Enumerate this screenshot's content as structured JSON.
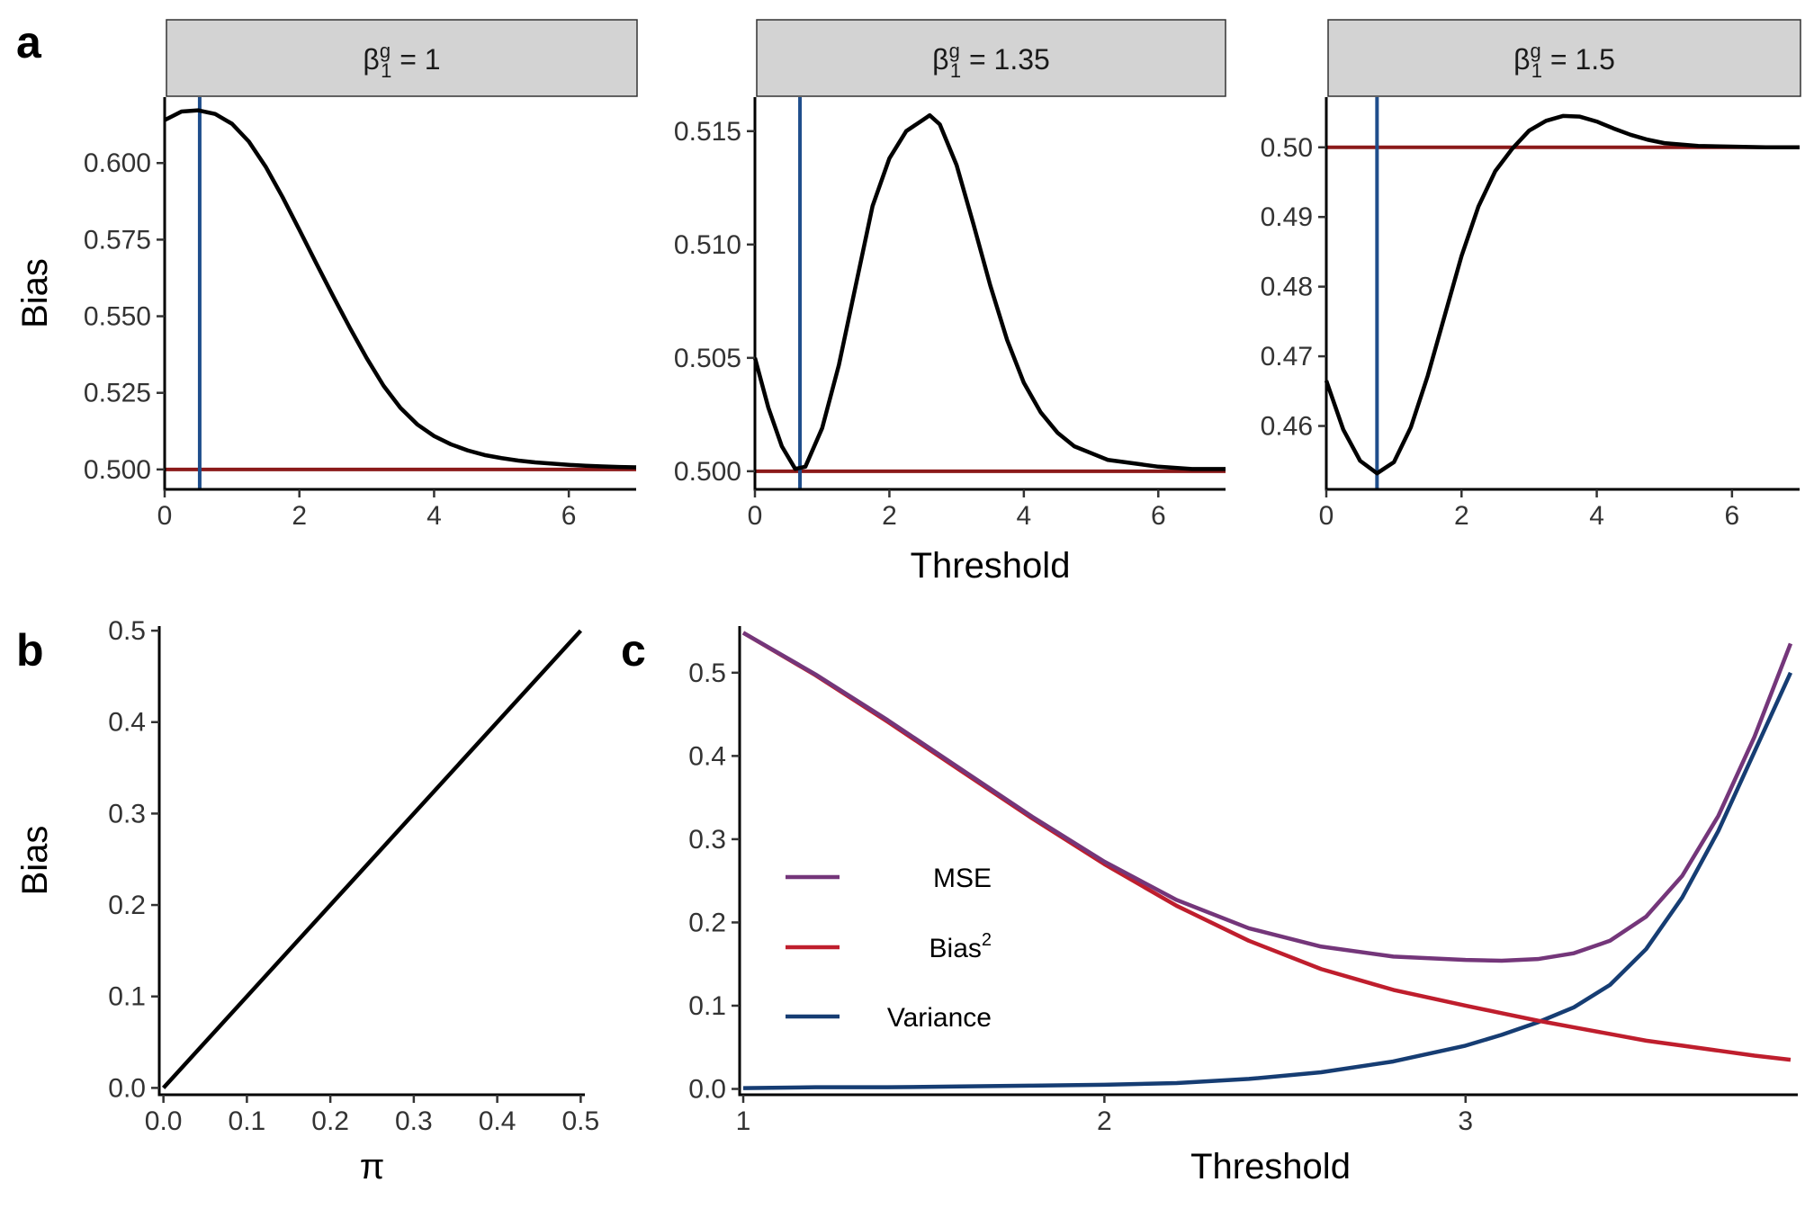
{
  "panel_labels": {
    "a": "a",
    "b": "b",
    "c": "c"
  },
  "colors": {
    "curve": "#000000",
    "vline": "#1f4e8c",
    "hline": "#8b1a1a",
    "strip_fill": "#d3d3d3",
    "mse": "#74367a",
    "bias2": "#bf1e2d",
    "variance": "#163d73"
  },
  "chart_data": [
    {
      "id": "a1",
      "type": "line",
      "strip": {
        "base": "β",
        "sup": "g",
        "sub": "1",
        "rest": " = 1"
      },
      "ylabel": "Bias",
      "xlabel": "",
      "xlim": [
        0,
        7
      ],
      "ylim": [
        0.4935,
        0.6215
      ],
      "xticks": [
        "0",
        "2",
        "4",
        "6"
      ],
      "xtick_values": [
        0,
        2,
        4,
        6
      ],
      "yticks": [
        "0.500",
        "0.525",
        "0.550",
        "0.575",
        "0.600"
      ],
      "ytick_values": [
        0.5,
        0.525,
        0.55,
        0.575,
        0.6
      ],
      "vline_x": 0.52,
      "hline_y": 0.5,
      "x": [
        0,
        0.25,
        0.5,
        0.75,
        1,
        1.25,
        1.5,
        1.75,
        2,
        2.25,
        2.5,
        2.75,
        3,
        3.25,
        3.5,
        3.75,
        4,
        4.25,
        4.5,
        4.75,
        5,
        5.25,
        5.5,
        5.75,
        6,
        6.25,
        6.5,
        6.75,
        7
      ],
      "y": [
        0.614,
        0.6168,
        0.6172,
        0.616,
        0.6128,
        0.607,
        0.5988,
        0.5889,
        0.5782,
        0.5673,
        0.5566,
        0.5462,
        0.5363,
        0.5273,
        0.5201,
        0.5147,
        0.5109,
        0.5082,
        0.5062,
        0.5047,
        0.5037,
        0.5029,
        0.5023,
        0.5019,
        0.5015,
        0.5012,
        0.501,
        0.5008,
        0.5007
      ]
    },
    {
      "id": "a2",
      "type": "line",
      "strip": {
        "base": "β",
        "sup": "g",
        "sub": "1",
        "rest": " = 1.35"
      },
      "ylabel": "",
      "xlabel": "Threshold",
      "xlim": [
        0,
        7
      ],
      "ylim": [
        0.4992,
        0.5165
      ],
      "xticks": [
        "0",
        "2",
        "4",
        "6"
      ],
      "xtick_values": [
        0,
        2,
        4,
        6
      ],
      "yticks": [
        "0.500",
        "0.505",
        "0.510",
        "0.515"
      ],
      "ytick_values": [
        0.5,
        0.505,
        0.51,
        0.515
      ],
      "vline_x": 0.67,
      "hline_y": 0.5,
      "x": [
        0,
        0.2,
        0.4,
        0.6,
        0.75,
        1,
        1.25,
        1.5,
        1.75,
        2,
        2.25,
        2.5,
        2.6,
        2.75,
        3,
        3.25,
        3.5,
        3.75,
        4,
        4.25,
        4.5,
        4.75,
        5,
        5.25,
        5.5,
        5.75,
        6,
        6.5,
        7
      ],
      "y": [
        0.505,
        0.5028,
        0.5011,
        0.5001,
        0.5002,
        0.5019,
        0.5047,
        0.5082,
        0.5117,
        0.5138,
        0.515,
        0.5155,
        0.5157,
        0.5153,
        0.5135,
        0.5109,
        0.5082,
        0.5058,
        0.5039,
        0.5026,
        0.5017,
        0.5011,
        0.5008,
        0.5005,
        0.5004,
        0.5003,
        0.5002,
        0.5001,
        0.5001
      ]
    },
    {
      "id": "a3",
      "type": "line",
      "strip": {
        "base": "β",
        "sup": "g",
        "sub": "1",
        "rest": " = 1.5"
      },
      "ylabel": "",
      "xlabel": "",
      "xlim": [
        0,
        7
      ],
      "ylim": [
        0.4509,
        0.5072
      ],
      "xticks": [
        "0",
        "2",
        "4",
        "6"
      ],
      "xtick_values": [
        0,
        2,
        4,
        6
      ],
      "yticks": [
        "0.46",
        "0.47",
        "0.48",
        "0.49",
        "0.50"
      ],
      "ytick_values": [
        0.46,
        0.47,
        0.48,
        0.49,
        0.5
      ],
      "vline_x": 0.75,
      "hline_y": 0.5,
      "x": [
        0,
        0.25,
        0.5,
        0.75,
        1,
        1.25,
        1.5,
        1.75,
        2,
        2.25,
        2.5,
        2.75,
        3,
        3.25,
        3.5,
        3.75,
        4,
        4.25,
        4.5,
        4.75,
        5,
        5.5,
        6,
        6.5,
        7
      ],
      "y": [
        0.4665,
        0.4595,
        0.455,
        0.4532,
        0.4548,
        0.4598,
        0.4672,
        0.4758,
        0.4844,
        0.4915,
        0.4966,
        0.4998,
        0.5024,
        0.5038,
        0.5045,
        0.5044,
        0.5037,
        0.5027,
        0.5018,
        0.5011,
        0.5006,
        0.5002,
        0.5001,
        0.5,
        0.5
      ]
    },
    {
      "id": "b",
      "type": "line",
      "ylabel": "Bias",
      "xlabel": "π",
      "xlim": [
        -0.005,
        0.505
      ],
      "ylim": [
        -0.0075,
        0.505
      ],
      "xticks": [
        "0.0",
        "0.1",
        "0.2",
        "0.3",
        "0.4",
        "0.5"
      ],
      "xtick_values": [
        0,
        0.1,
        0.2,
        0.3,
        0.4,
        0.5
      ],
      "yticks": [
        "0.0",
        "0.1",
        "0.2",
        "0.3",
        "0.4",
        "0.5"
      ],
      "ytick_values": [
        0,
        0.1,
        0.2,
        0.3,
        0.4,
        0.5
      ],
      "x": [
        0,
        0.5
      ],
      "y": [
        0,
        0.5
      ]
    },
    {
      "id": "c",
      "type": "line",
      "ylabel": "",
      "xlabel": "Threshold",
      "xlim": [
        0.99,
        3.92
      ],
      "ylim": [
        -0.007,
        0.556
      ],
      "xticks": [
        "1",
        "2",
        "3"
      ],
      "xtick_values": [
        1,
        2,
        3
      ],
      "yticks": [
        "0.0",
        "0.1",
        "0.2",
        "0.3",
        "0.4",
        "0.5"
      ],
      "ytick_values": [
        0,
        0.1,
        0.2,
        0.3,
        0.4,
        0.5
      ],
      "x": [
        1,
        1.2,
        1.4,
        1.6,
        1.8,
        2,
        2.2,
        2.4,
        2.6,
        2.8,
        3,
        3.1,
        3.2,
        3.3,
        3.4,
        3.5,
        3.6,
        3.7,
        3.8,
        3.9
      ],
      "series": [
        {
          "name": "MSE",
          "legend": {
            "text": "MSE",
            "sup": ""
          },
          "color_key": "mse",
          "values": [
            0.548,
            0.498,
            0.443,
            0.385,
            0.327,
            0.273,
            0.227,
            0.193,
            0.171,
            0.159,
            0.155,
            0.154,
            0.156,
            0.163,
            0.178,
            0.207,
            0.256,
            0.328,
            0.423,
            0.535
          ]
        },
        {
          "name": "Bias",
          "legend": {
            "text": "Bias",
            "sup": "2"
          },
          "color_key": "bias2",
          "values": [
            0.548,
            0.497,
            0.441,
            0.383,
            0.325,
            0.27,
            0.22,
            0.178,
            0.144,
            0.119,
            0.1,
            0.091,
            0.082,
            0.074,
            0.066,
            0.058,
            0.052,
            0.046,
            0.04,
            0.035
          ]
        },
        {
          "name": "Variance",
          "legend": {
            "text": "Variance",
            "sup": ""
          },
          "color_key": "variance",
          "values": [
            0.001,
            0.002,
            0.002,
            0.003,
            0.004,
            0.005,
            0.007,
            0.012,
            0.02,
            0.033,
            0.052,
            0.065,
            0.08,
            0.098,
            0.125,
            0.168,
            0.23,
            0.31,
            0.405,
            0.5
          ]
        }
      ]
    }
  ]
}
